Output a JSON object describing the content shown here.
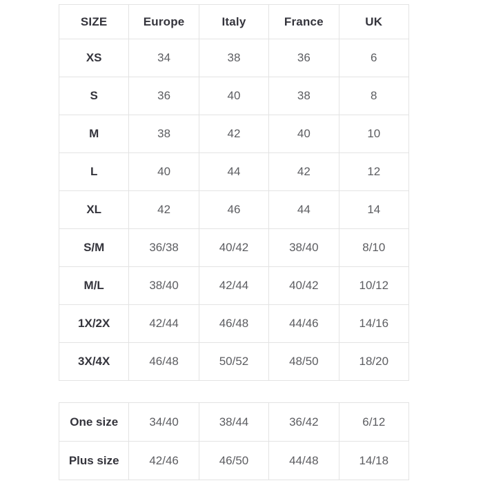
{
  "colors": {
    "background": "#ffffff",
    "border": "#e3e3e3",
    "header_text": "#34343c",
    "data_text": "#5c5d61"
  },
  "main_table": {
    "columns": [
      "SIZE",
      "Europe",
      "Italy",
      "France",
      "UK"
    ],
    "rows": [
      {
        "size": "XS",
        "values": [
          "34",
          "38",
          "36",
          "6"
        ]
      },
      {
        "size": "S",
        "values": [
          "36",
          "40",
          "38",
          "8"
        ]
      },
      {
        "size": "M",
        "values": [
          "38",
          "42",
          "40",
          "10"
        ]
      },
      {
        "size": "L",
        "values": [
          "40",
          "44",
          "42",
          "12"
        ]
      },
      {
        "size": "XL",
        "values": [
          "42",
          "46",
          "44",
          "14"
        ]
      },
      {
        "size": "S/M",
        "values": [
          "36/38",
          "40/42",
          "38/40",
          "8/10"
        ]
      },
      {
        "size": "M/L",
        "values": [
          "38/40",
          "42/44",
          "40/42",
          "10/12"
        ]
      },
      {
        "size": "1X/2X",
        "values": [
          "42/44",
          "46/48",
          "44/46",
          "14/16"
        ]
      },
      {
        "size": "3X/4X",
        "values": [
          "46/48",
          "50/52",
          "48/50",
          "18/20"
        ]
      }
    ]
  },
  "extra_table": {
    "rows": [
      {
        "size": "One size",
        "values": [
          "34/40",
          "38/44",
          "36/42",
          "6/12"
        ]
      },
      {
        "size": "Plus size",
        "values": [
          "42/46",
          "46/50",
          "44/48",
          "14/18"
        ]
      }
    ]
  }
}
